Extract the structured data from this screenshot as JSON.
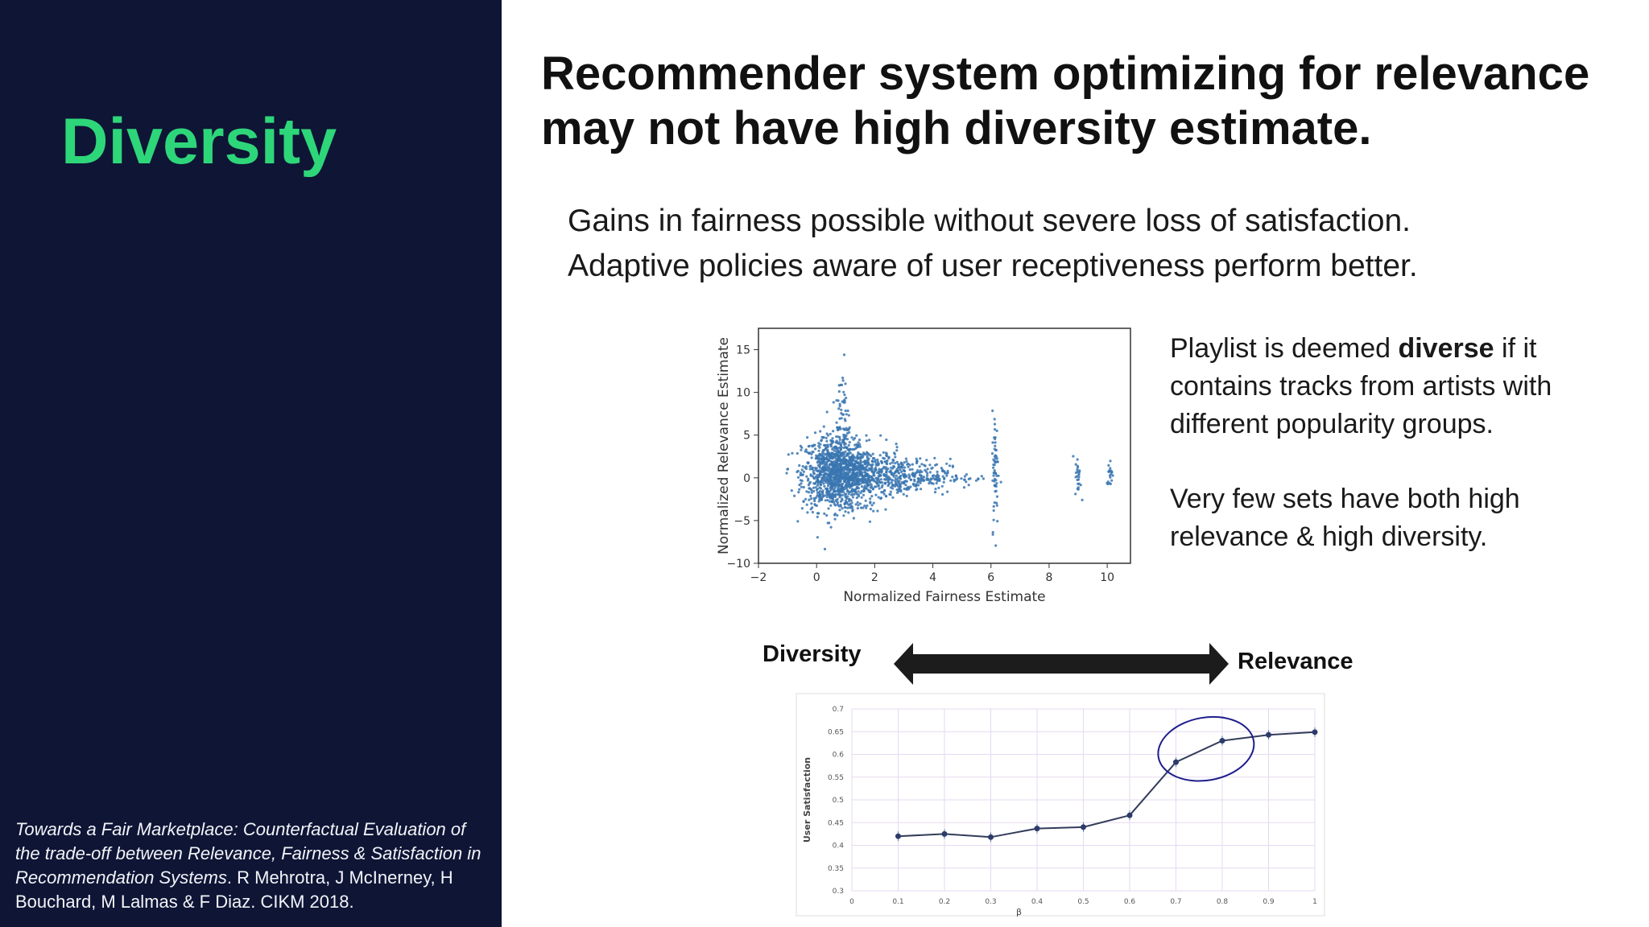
{
  "sidebar": {
    "title": "Diversity",
    "citation_italic": "Towards a Fair Marketplace: Counterfactual Evaluation of the trade-off between Relevance, Fairness & Satisfaction in Recommendation Systems",
    "citation_rest": ". R Mehrotra, J McInerney, H Bouchard, M Lalmas & F Diaz. CIKM 2018."
  },
  "main": {
    "headline": "Recommender system optimizing for relevance may not have high diversity estimate.",
    "lead1": "Gains in fairness possible without severe loss of satisfaction.",
    "lead2": "Adaptive policies aware of user receptiveness perform better.",
    "desc1_before": "Playlist is deemed ",
    "desc1_bold": "diverse",
    "desc1_after": " if it contains tracks from artists with different popularity groups.",
    "desc2": "Very few sets have both high relevance & high diversity.",
    "arrow_left_label": "Diversity",
    "arrow_right_label": "Relevance"
  },
  "colors": {
    "sidebar_bg": "#0e1535",
    "accent": "#2ed67a",
    "scatter": "#3a75b0",
    "line": "#333c5a",
    "circle": "#1e1e8c"
  },
  "chart_data": [
    {
      "type": "scatter",
      "xlabel": "Normalized Fairness Estimate",
      "ylabel": "Normalized Relevance Estimate",
      "xlim": [
        -2,
        10.8
      ],
      "ylim": [
        -10,
        17.5
      ],
      "xticks": [
        "−2",
        "0",
        "2",
        "4",
        "6",
        "8",
        "10"
      ],
      "yticks": [
        "−10",
        "−5",
        "0",
        "5",
        "10",
        "15"
      ],
      "clusters": [
        {
          "x": 0.6,
          "y": 0.5,
          "sx": 0.55,
          "sy": 2.2,
          "n": 900
        },
        {
          "x": 1.6,
          "y": 0.3,
          "sx": 0.7,
          "sy": 1.6,
          "n": 500
        },
        {
          "x": 3.0,
          "y": 0.2,
          "sx": 0.8,
          "sy": 1.0,
          "n": 250
        },
        {
          "x": 0.9,
          "y": 7.0,
          "sx": 0.12,
          "sy": 3.5,
          "n": 70
        },
        {
          "x": 6.15,
          "y": 1.0,
          "sx": 0.05,
          "sy": 3.5,
          "n": 60
        },
        {
          "x": 9.0,
          "y": 0.0,
          "sx": 0.05,
          "sy": 1.2,
          "n": 25
        },
        {
          "x": 10.1,
          "y": 0.6,
          "sx": 0.06,
          "sy": 0.8,
          "n": 20
        },
        {
          "x": 4.7,
          "y": 0.0,
          "sx": 0.6,
          "sy": 0.6,
          "n": 40
        }
      ]
    },
    {
      "type": "line",
      "xlabel": "β",
      "ylabel": "User Satisfaction",
      "xlim": [
        0,
        1
      ],
      "ylim": [
        0.3,
        0.7
      ],
      "xticks": [
        "0",
        "0.1",
        "0.2",
        "0.3",
        "0.4",
        "0.5",
        "0.6",
        "0.7",
        "0.8",
        "0.9",
        "1"
      ],
      "yticks": [
        "0.3",
        "0.35",
        "0.4",
        "0.45",
        "0.5",
        "0.55",
        "0.6",
        "0.65",
        "0.7"
      ],
      "x": [
        0.1,
        0.2,
        0.3,
        0.4,
        0.5,
        0.6,
        0.7,
        0.8,
        0.9,
        1.0
      ],
      "y": [
        0.42,
        0.425,
        0.418,
        0.437,
        0.44,
        0.466,
        0.583,
        0.63,
        0.643,
        0.649
      ],
      "highlight": {
        "cx": 0.765,
        "cy": 0.612
      }
    }
  ]
}
